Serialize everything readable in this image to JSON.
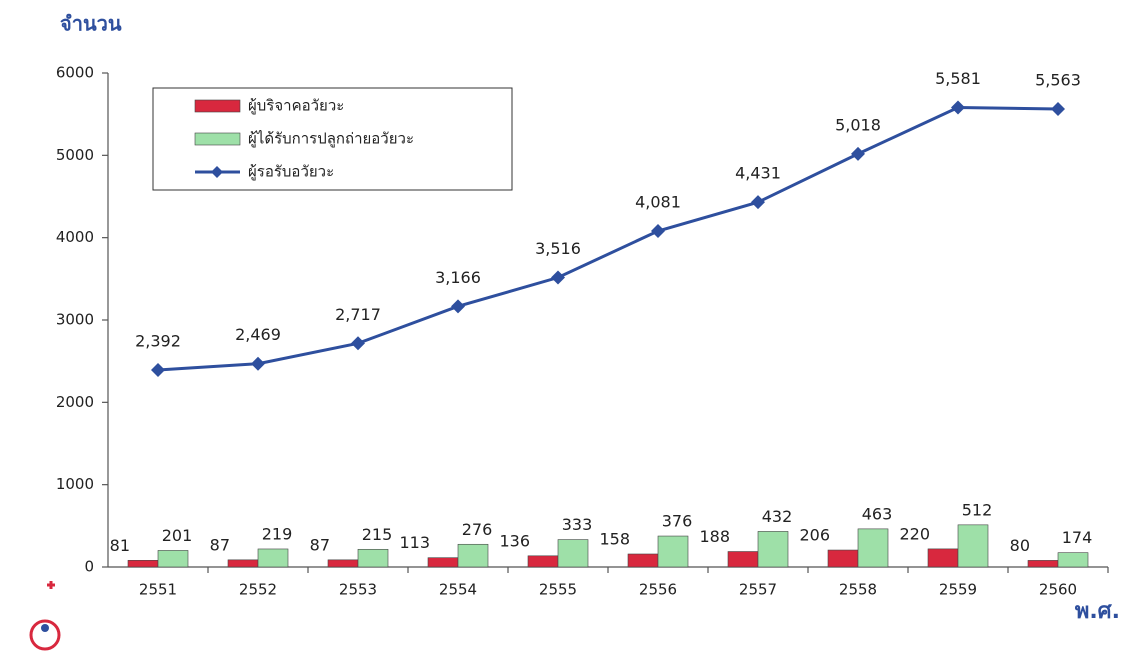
{
  "chart_data": {
    "type": "bar",
    "y_label": "จำนวน",
    "x_label": "พ.ศ.",
    "categories": [
      "2551",
      "2552",
      "2553",
      "2554",
      "2555",
      "2556",
      "2557",
      "2558",
      "2559",
      "2560"
    ],
    "series": [
      {
        "name": "ผู้บริจาคอวัยวะ",
        "type": "bar",
        "color": "#d8283e",
        "values": [
          81,
          87,
          87,
          113,
          136,
          158,
          188,
          206,
          220,
          80
        ]
      },
      {
        "name": "ผู้ได้รับการปลูกถ่ายอวัยวะ",
        "type": "bar",
        "color": "#9ee0a8",
        "values": [
          201,
          219,
          215,
          276,
          333,
          376,
          432,
          463,
          512,
          174
        ]
      },
      {
        "name": "ผู้รอรับอวัยวะ",
        "type": "line",
        "color": "#2e4f9e",
        "values": [
          2392,
          2469,
          2717,
          3166,
          3516,
          4081,
          4431,
          5018,
          5581,
          5563
        ],
        "value_labels": [
          "2,392",
          "2,469",
          "2,717",
          "3,166",
          "3,516",
          "4,081",
          "4,431",
          "5,018",
          "5,581",
          "5,563"
        ]
      }
    ],
    "ylim": [
      0,
      6000
    ],
    "yticks": [
      0,
      1000,
      2000,
      3000,
      4000,
      5000,
      6000
    ],
    "legend": "upper left"
  }
}
